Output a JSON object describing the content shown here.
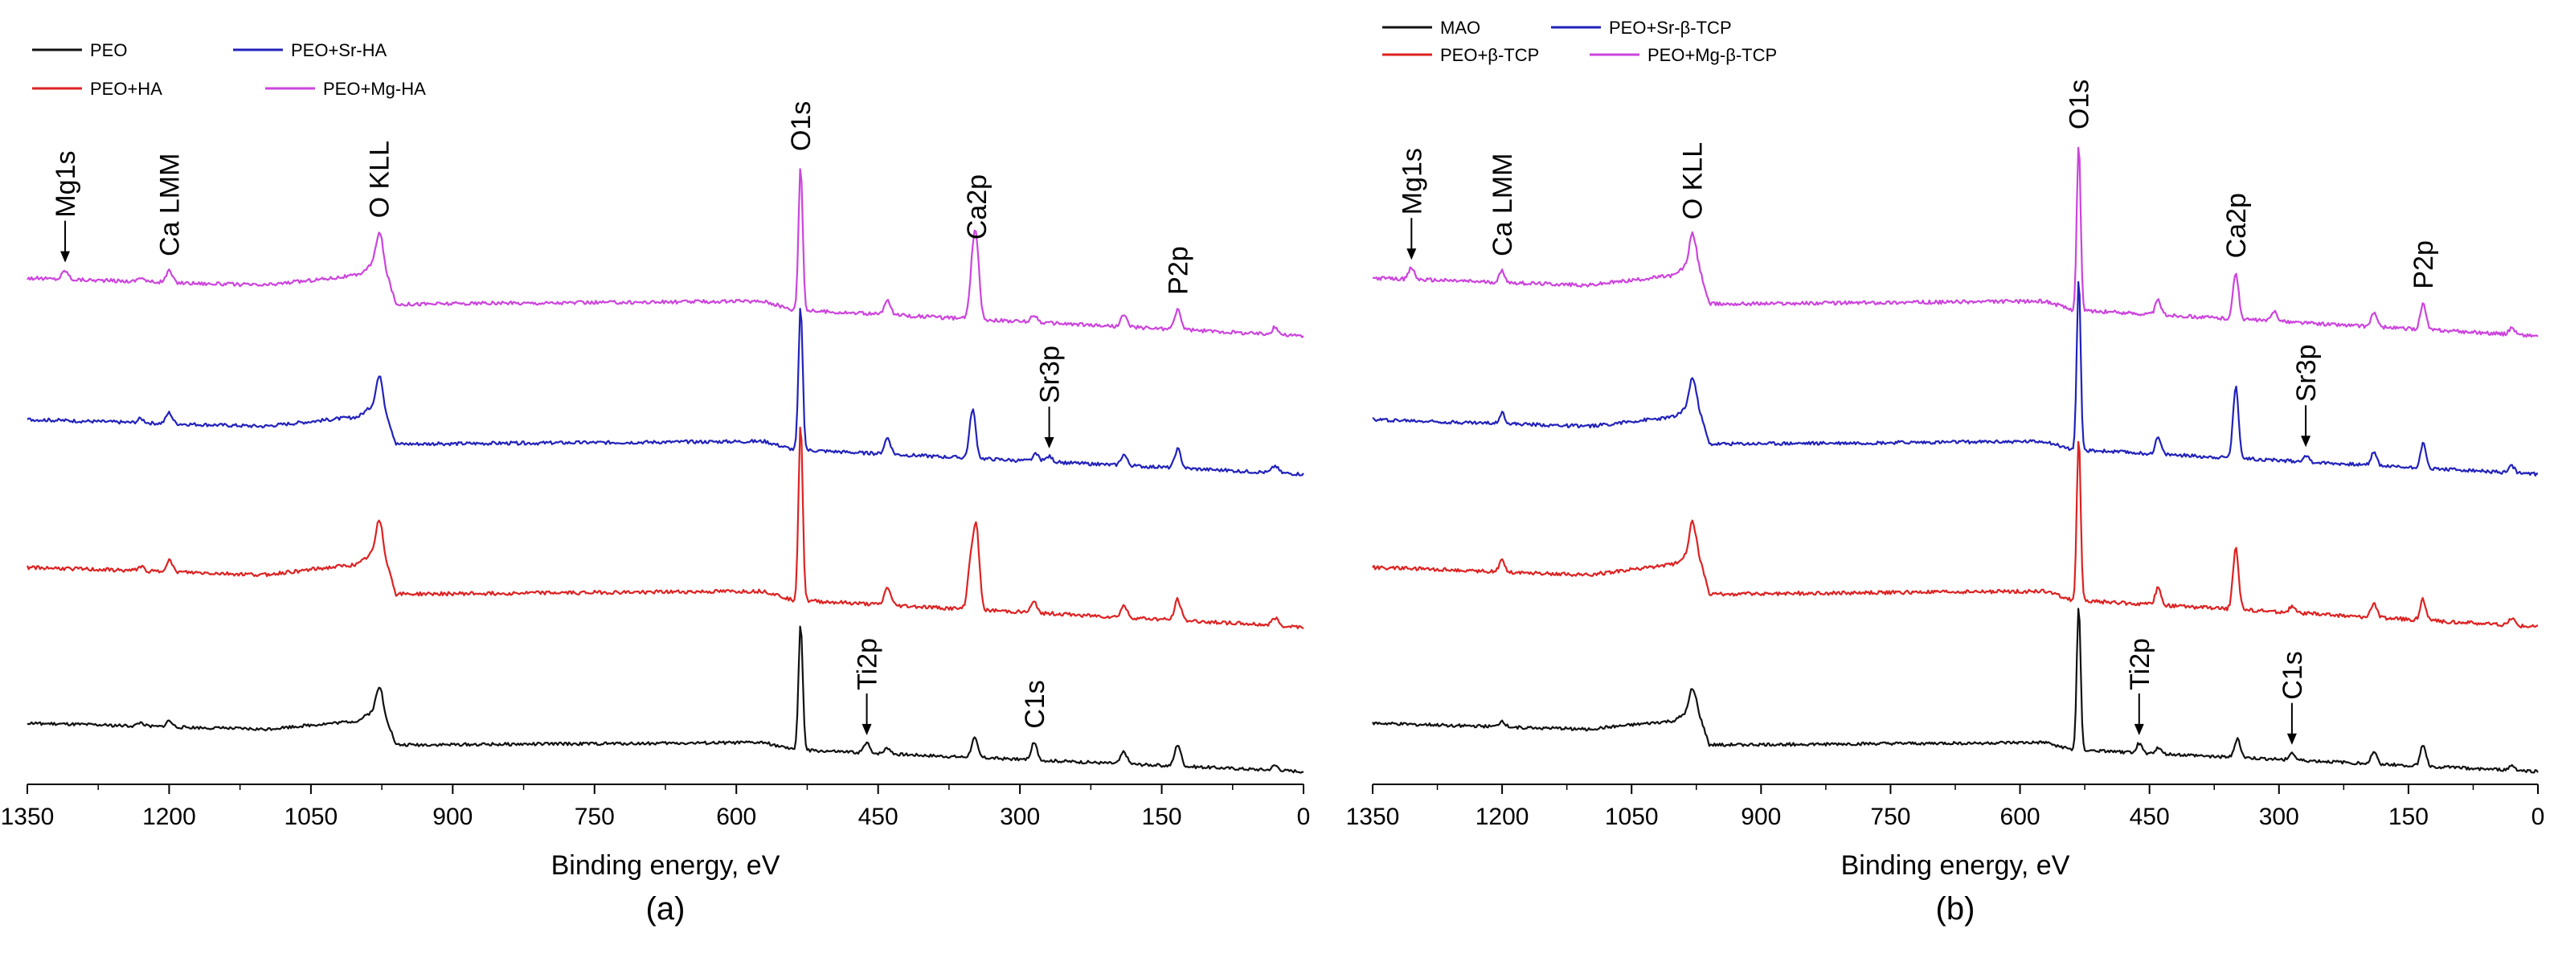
{
  "chart_data": [
    {
      "type": "line",
      "panel_label": "(a)",
      "xlabel": "Binding energy, eV",
      "ylabel": "",
      "xlim": [
        1350,
        0
      ],
      "x_reversed": true,
      "xticks": [
        1350,
        1200,
        1050,
        900,
        750,
        600,
        450,
        300,
        150,
        0
      ],
      "legend": [
        "PEO",
        "PEO+Sr-HA",
        "PEO+HA",
        "PEO+Mg-HA"
      ],
      "series": [
        {
          "name": "PEO+Mg-HA",
          "color": "#cc44dd",
          "offset": 3,
          "background": [
            [
              1350,
              0.4
            ],
            [
              1100,
              0.35
            ],
            [
              1000,
              0.42
            ],
            [
              975,
              0.55
            ],
            [
              960,
              0.22
            ],
            [
              570,
              0.24
            ],
            [
              540,
              0.18
            ],
            [
              0,
              0.0
            ]
          ],
          "peaks": [
            [
              1310,
              0.06
            ],
            [
              1230,
              0.03
            ],
            [
              1200,
              0.08
            ],
            [
              978,
              0.18
            ],
            [
              532,
              1.0
            ],
            [
              440,
              0.1
            ],
            [
              350,
              0.3
            ],
            [
              346,
              0.45
            ],
            [
              285,
              0.05
            ],
            [
              190,
              0.08
            ],
            [
              133,
              0.14
            ],
            [
              30,
              0.05
            ]
          ]
        },
        {
          "name": "PEO+Sr-HA",
          "color": "#2222bb",
          "offset": 2,
          "background": [
            [
              1350,
              0.4
            ],
            [
              1100,
              0.35
            ],
            [
              1000,
              0.42
            ],
            [
              975,
              0.55
            ],
            [
              960,
              0.22
            ],
            [
              570,
              0.24
            ],
            [
              540,
              0.18
            ],
            [
              0,
              0.0
            ]
          ],
          "peaks": [
            [
              1230,
              0.03
            ],
            [
              1200,
              0.08
            ],
            [
              978,
              0.18
            ],
            [
              532,
              1.05
            ],
            [
              440,
              0.12
            ],
            [
              350,
              0.36
            ],
            [
              283,
              0.05
            ],
            [
              269,
              0.04
            ],
            [
              190,
              0.08
            ],
            [
              133,
              0.14
            ],
            [
              30,
              0.05
            ]
          ]
        },
        {
          "name": "PEO+HA",
          "color": "#dd2222",
          "offset": 1,
          "background": [
            [
              1350,
              0.4
            ],
            [
              1100,
              0.35
            ],
            [
              1000,
              0.42
            ],
            [
              975,
              0.55
            ],
            [
              960,
              0.22
            ],
            [
              570,
              0.24
            ],
            [
              540,
              0.18
            ],
            [
              0,
              0.0
            ]
          ],
          "peaks": [
            [
              1230,
              0.03
            ],
            [
              1200,
              0.08
            ],
            [
              978,
              0.18
            ],
            [
              532,
              1.2
            ],
            [
              440,
              0.12
            ],
            [
              352,
              0.3
            ],
            [
              346,
              0.52
            ],
            [
              285,
              0.07
            ],
            [
              190,
              0.08
            ],
            [
              133,
              0.14
            ],
            [
              30,
              0.05
            ]
          ]
        },
        {
          "name": "PEO",
          "color": "#111111",
          "offset": 0,
          "background": [
            [
              1350,
              0.4
            ],
            [
              1100,
              0.35
            ],
            [
              1000,
              0.42
            ],
            [
              975,
              0.55
            ],
            [
              960,
              0.22
            ],
            [
              570,
              0.24
            ],
            [
              540,
              0.18
            ],
            [
              0,
              0.0
            ]
          ],
          "peaks": [
            [
              1230,
              0.03
            ],
            [
              1200,
              0.05
            ],
            [
              978,
              0.16
            ],
            [
              532,
              1.05
            ],
            [
              462,
              0.08
            ],
            [
              440,
              0.05
            ],
            [
              348,
              0.16
            ],
            [
              285,
              0.14
            ],
            [
              190,
              0.1
            ],
            [
              133,
              0.18
            ],
            [
              30,
              0.04
            ]
          ]
        }
      ],
      "annotations": [
        {
          "text": "Mg1s",
          "x": 1310,
          "above": "PEO+Mg-HA",
          "arrow": true
        },
        {
          "text": "Ca LMM",
          "x": 1200,
          "above": "PEO+Mg-HA"
        },
        {
          "text": "O KLL",
          "x": 978,
          "above": "PEO+Mg-HA"
        },
        {
          "text": "O1s",
          "x": 532,
          "above": "PEO+Mg-HA",
          "top": true
        },
        {
          "text": "Ca2p",
          "x": 346,
          "above": "PEO+Mg-HA"
        },
        {
          "text": "P2p",
          "x": 133,
          "above": "PEO+Mg-HA"
        },
        {
          "text": "Sr3p",
          "x": 269,
          "above": "PEO+Sr-HA",
          "arrow": true
        },
        {
          "text": "Ti2p",
          "x": 462,
          "above": "PEO",
          "arrow": true
        },
        {
          "text": "C1s",
          "x": 285,
          "above": "PEO"
        }
      ]
    },
    {
      "type": "line",
      "panel_label": "(b)",
      "xlabel": "Binding energy, eV",
      "ylabel": "",
      "xlim": [
        1350,
        0
      ],
      "x_reversed": true,
      "xticks": [
        1350,
        1200,
        1050,
        900,
        750,
        600,
        450,
        300,
        150,
        0
      ],
      "legend": [
        "MAO",
        "PEO+Sr-β-TCP",
        "PEO+β-TCP",
        "PEO+Mg-β-TCP"
      ],
      "series": [
        {
          "name": "PEO+Mg-β-TCP",
          "color": "#cc44dd",
          "offset": 3,
          "background": [
            [
              1350,
              0.4
            ],
            [
              1100,
              0.35
            ],
            [
              1000,
              0.42
            ],
            [
              975,
              0.55
            ],
            [
              960,
              0.22
            ],
            [
              570,
              0.24
            ],
            [
              540,
              0.18
            ],
            [
              0,
              0.0
            ]
          ],
          "peaks": [
            [
              1305,
              0.08
            ],
            [
              1200,
              0.08
            ],
            [
              980,
              0.18
            ],
            [
              532,
              1.15
            ],
            [
              440,
              0.1
            ],
            [
              350,
              0.32
            ],
            [
              305,
              0.07
            ],
            [
              190,
              0.1
            ],
            [
              133,
              0.18
            ],
            [
              30,
              0.05
            ]
          ]
        },
        {
          "name": "PEO+Sr-β-TCP",
          "color": "#2222bb",
          "offset": 2,
          "background": [
            [
              1350,
              0.4
            ],
            [
              1100,
              0.35
            ],
            [
              1000,
              0.42
            ],
            [
              975,
              0.55
            ],
            [
              960,
              0.22
            ],
            [
              570,
              0.24
            ],
            [
              540,
              0.18
            ],
            [
              0,
              0.0
            ]
          ],
          "peaks": [
            [
              1200,
              0.08
            ],
            [
              980,
              0.18
            ],
            [
              532,
              1.25
            ],
            [
              440,
              0.12
            ],
            [
              350,
              0.52
            ],
            [
              269,
              0.05
            ],
            [
              190,
              0.1
            ],
            [
              133,
              0.18
            ],
            [
              30,
              0.05
            ]
          ]
        },
        {
          "name": "PEO+β-TCP",
          "color": "#dd2222",
          "offset": 1,
          "background": [
            [
              1350,
              0.4
            ],
            [
              1100,
              0.35
            ],
            [
              1000,
              0.42
            ],
            [
              975,
              0.55
            ],
            [
              960,
              0.22
            ],
            [
              570,
              0.24
            ],
            [
              540,
              0.18
            ],
            [
              0,
              0.0
            ]
          ],
          "peaks": [
            [
              1200,
              0.08
            ],
            [
              980,
              0.18
            ],
            [
              532,
              1.1
            ],
            [
              440,
              0.12
            ],
            [
              350,
              0.42
            ],
            [
              285,
              0.04
            ],
            [
              190,
              0.1
            ],
            [
              133,
              0.14
            ],
            [
              30,
              0.05
            ]
          ]
        },
        {
          "name": "MAO",
          "color": "#111111",
          "offset": 0,
          "background": [
            [
              1350,
              0.4
            ],
            [
              1100,
              0.35
            ],
            [
              1000,
              0.42
            ],
            [
              975,
              0.55
            ],
            [
              960,
              0.22
            ],
            [
              570,
              0.24
            ],
            [
              540,
              0.18
            ],
            [
              0,
              0.0
            ]
          ],
          "peaks": [
            [
              1200,
              0.05
            ],
            [
              980,
              0.16
            ],
            [
              532,
              1.2
            ],
            [
              462,
              0.08
            ],
            [
              440,
              0.05
            ],
            [
              348,
              0.16
            ],
            [
              285,
              0.06
            ],
            [
              190,
              0.1
            ],
            [
              133,
              0.18
            ],
            [
              30,
              0.04
            ]
          ]
        }
      ],
      "annotations": [
        {
          "text": "Mg1s",
          "x": 1305,
          "above": "PEO+Mg-β-TCP",
          "arrow": true
        },
        {
          "text": "Ca LMM",
          "x": 1200,
          "above": "PEO+Mg-β-TCP"
        },
        {
          "text": "O KLL",
          "x": 980,
          "above": "PEO+Mg-β-TCP"
        },
        {
          "text": "O1s",
          "x": 532,
          "above": "PEO+Mg-β-TCP",
          "top": true
        },
        {
          "text": "Ca2p",
          "x": 350,
          "above": "PEO+Mg-β-TCP"
        },
        {
          "text": "P2p",
          "x": 133,
          "above": "PEO+Mg-β-TCP"
        },
        {
          "text": "Sr3p",
          "x": 269,
          "above": "PEO+Sr-β-TCP",
          "arrow": true
        },
        {
          "text": "Ti2p",
          "x": 462,
          "above": "MAO",
          "arrow": true
        },
        {
          "text": "C1s",
          "x": 285,
          "above": "MAO",
          "arrow": true
        }
      ]
    }
  ]
}
